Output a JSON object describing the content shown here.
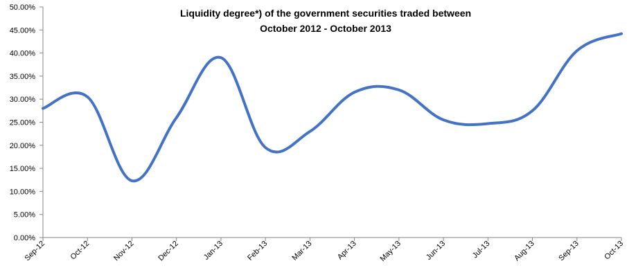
{
  "chart_data": {
    "type": "line",
    "title_lines": [
      "Liquidity degree*) of the government securities traded between",
      "October 2012 - October  2013"
    ],
    "xlabel": "",
    "ylabel": "",
    "x": [
      "Sep-12",
      "Oct-12",
      "Nov-12",
      "Dec-12",
      "Jan-13",
      "Feb-13",
      "Mar-13",
      "Apr-13",
      "May-13",
      "Jun-13",
      "Jul-13",
      "Aug-13",
      "Sep-13",
      "Oct-13"
    ],
    "series": [
      {
        "values": [
          28.0,
          30.5,
          12.3,
          26.0,
          39.0,
          19.5,
          23.0,
          31.5,
          32.0,
          25.5,
          24.7,
          27.5,
          40.5,
          44.2
        ]
      }
    ],
    "ylim": [
      0,
      50
    ],
    "yticks": [
      "0.00%",
      "5.00%",
      "10.00%",
      "15.00%",
      "20.00%",
      "25.00%",
      "30.00%",
      "35.00%",
      "40.00%",
      "45.00%",
      "50.00%"
    ],
    "grid": false,
    "legend": "none",
    "line_color": "#4472C4",
    "axis_color": "#868686"
  }
}
